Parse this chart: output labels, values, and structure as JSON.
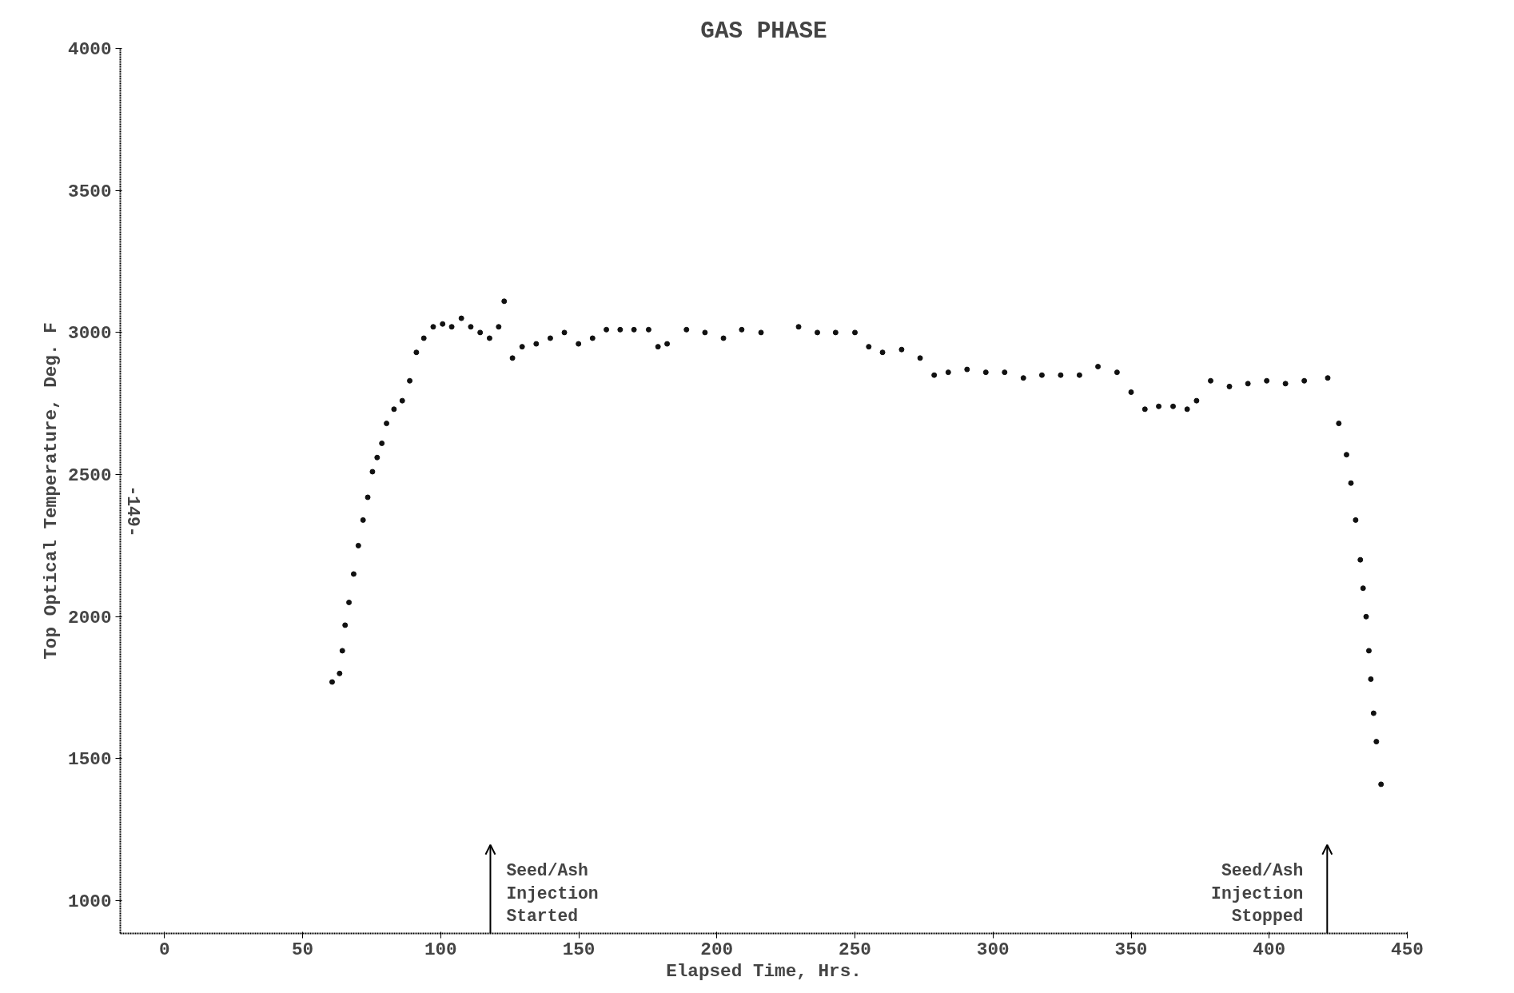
{
  "chart_data": {
    "type": "scatter",
    "title": "GAS PHASE",
    "xlabel": "Elapsed Time, Hrs.",
    "ylabel": "Top Optical Temperature, Deg. F",
    "x": [
      60.7,
      63.4,
      64.4,
      65.4,
      66.8,
      68.5,
      70.2,
      71.9,
      73.6,
      75.3,
      77,
      78.7,
      80.4,
      83.1,
      86.1,
      88.8,
      91.2,
      93.9,
      97.3,
      100.7,
      104,
      107.5,
      110.9,
      114.3,
      117.7,
      121,
      123,
      126,
      129.5,
      134.6,
      139.7,
      144.8,
      149.9,
      155,
      160,
      165,
      170,
      175.3,
      178.7,
      182,
      189,
      195.7,
      202.4,
      209,
      216,
      229.6,
      236.4,
      243,
      250,
      255,
      260,
      266.9,
      273.6,
      278.7,
      283.8,
      290.6,
      297.4,
      304.2,
      311,
      317.7,
      324.5,
      331.3,
      338,
      344.9,
      350,
      355,
      360,
      365.2,
      370.3,
      373.7,
      378.8,
      385.6,
      392.3,
      399.1,
      405.9,
      412.7,
      421.2,
      425.2,
      428,
      429.6,
      431.3,
      433,
      434,
      435.1,
      436.1,
      436.8,
      437.8,
      438.8,
      440.5
    ],
    "series": [
      {
        "color": "#111111",
        "values": [
          1770,
          1800,
          1880,
          1970,
          2050,
          2150,
          2250,
          2340,
          2420,
          2510,
          2560,
          2610,
          2680,
          2730,
          2760,
          2830,
          2930,
          2980,
          3020,
          3030,
          3020,
          3050,
          3020,
          3000,
          2980,
          3020,
          3110,
          2910,
          2950,
          2960,
          2980,
          3000,
          2960,
          2980,
          3010,
          3010,
          3010,
          3010,
          2950,
          2960,
          3010,
          3000,
          2980,
          3010,
          3000,
          3020,
          3000,
          3000,
          3000,
          2950,
          2930,
          2940,
          2910,
          2850,
          2860,
          2870,
          2860,
          2860,
          2840,
          2850,
          2850,
          2850,
          2880,
          2860,
          2790,
          2730,
          2740,
          2740,
          2730,
          2760,
          2830,
          2810,
          2820,
          2830,
          2820,
          2830,
          2840,
          2680,
          2570,
          2470,
          2340,
          2200,
          2100,
          2000,
          1880,
          1780,
          1660,
          1560,
          1410
        ]
      }
    ],
    "xlim": [
      -16,
      450
    ],
    "ylim": [
      885,
      4000
    ],
    "xticks": [
      0,
      50,
      100,
      150,
      200,
      250,
      300,
      350,
      400,
      450
    ],
    "yticks": [
      1000,
      1500,
      2000,
      2500,
      3000,
      3500,
      4000
    ],
    "grid": false,
    "marker": "circle",
    "ref_lines": [
      {
        "axis": "x",
        "value": 118,
        "label": "Seed/Ash\nInjection\nStarted"
      },
      {
        "axis": "x",
        "value": 421,
        "label": "Seed/Ash\nInjection\nStopped"
      }
    ],
    "annotations": [
      "-149-"
    ]
  }
}
